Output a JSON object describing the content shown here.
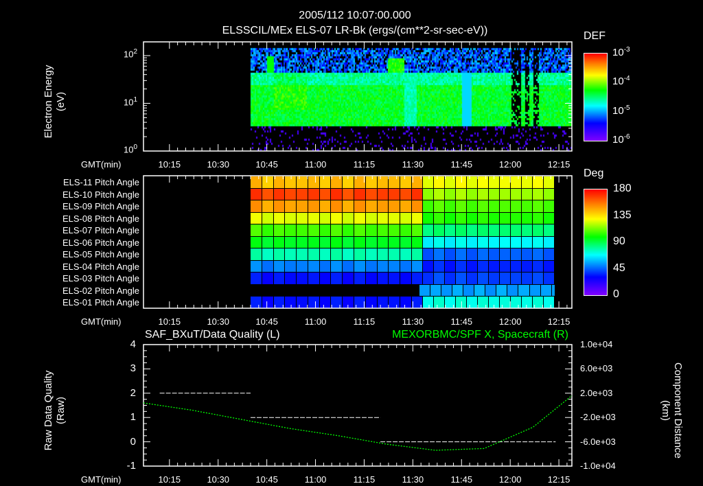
{
  "header": {
    "datetime": "2005/112 10:07:00.000"
  },
  "chart_data": [
    {
      "type": "heatmap",
      "title": "ELSSCIL/MEx ELS-07 LR-Bk  (ergs/(cm**2-sr-sec-eV))",
      "ylabel": "Electron Energy",
      "yunit": "(eV)",
      "yscale": "log",
      "ylim": [
        1,
        195
      ],
      "yticks": [
        {
          "base": "10",
          "exp": "0"
        },
        {
          "base": "10",
          "exp": "1"
        },
        {
          "base": "10",
          "exp": "2"
        }
      ],
      "xlabel": "GMT(min)",
      "xlim": [
        "10:07",
        "12:19"
      ],
      "xticks": [
        "10:15",
        "10:30",
        "10:45",
        "11:00",
        "11:15",
        "11:30",
        "11:45",
        "12:00",
        "12:15"
      ],
      "colorbar": {
        "label": "DEF",
        "ticks": [
          {
            "base": "10",
            "exp": "-3"
          },
          {
            "base": "10",
            "exp": "-4"
          },
          {
            "base": "10",
            "exp": "-5"
          },
          {
            "base": "10",
            "exp": "-6"
          }
        ],
        "range": [
          1e-06,
          0.001
        ],
        "scale": "log"
      },
      "data_start": "10:40",
      "band_eV": [
        3.5,
        150
      ],
      "peak_band_eV": [
        4,
        40
      ]
    },
    {
      "type": "heatmap",
      "xlabel": "GMT(min)",
      "xticks": [
        "10:15",
        "10:30",
        "10:45",
        "11:00",
        "11:15",
        "11:30",
        "11:45",
        "12:00",
        "12:15"
      ],
      "rows": [
        "ELS-11 Pitch Angle",
        "ELS-10 Pitch Angle",
        "ELS-09 Pitch Angle",
        "ELS-08 Pitch Angle",
        "ELS-07 Pitch Angle",
        "ELS-06 Pitch Angle",
        "ELS-05 Pitch Angle",
        "ELS-04 Pitch Angle",
        "ELS-03 Pitch Angle",
        "ELS-02 Pitch Angle",
        "ELS-01 Pitch Angle"
      ],
      "before_11_33": [
        150,
        170,
        155,
        135,
        110,
        95,
        72,
        40,
        22,
        null,
        22
      ],
      "after_11_34": [
        138,
        125,
        112,
        105,
        82,
        60,
        35,
        25,
        30,
        45,
        65
      ],
      "colorbar": {
        "label": "Deg",
        "ticks": [
          "180",
          "135",
          "90",
          "45",
          "0"
        ],
        "range": [
          0,
          180
        ]
      }
    },
    {
      "type": "line",
      "title_left": "SAF_BXuT/Data Quality (L)",
      "title_right": "MEXORBMC/SPF X, Spacecraft (R)",
      "ylabel_left": "Raw Data Quality",
      "yunit_left": "(Raw)",
      "ylabel_right": "Component Distance",
      "yunit_right": "(km)",
      "ylim_left": [
        -1,
        4
      ],
      "yticks_left": [
        "4",
        "3",
        "2",
        "1",
        "0",
        "-1"
      ],
      "ylim_right": [
        -10000,
        10000
      ],
      "yticks_right": [
        "1.0e+04",
        "6.0e+03",
        "2.0e+03",
        "-2.0e+03",
        "-6.0e+03",
        "-1.0e+04"
      ],
      "xlabel": "GMT(min)",
      "xticks": [
        "10:15",
        "10:30",
        "10:45",
        "11:00",
        "11:15",
        "11:30",
        "11:45",
        "12:00",
        "12:15"
      ],
      "series": [
        {
          "name": "Data Quality",
          "color": "#ffffff",
          "segments": [
            {
              "from": "10:12",
              "to": "10:40",
              "value": 2
            },
            {
              "from": "10:40",
              "to": "11:20",
              "value": 1
            },
            {
              "from": "11:20",
              "to": "12:14",
              "value": 0
            }
          ]
        },
        {
          "name": "SPF X",
          "color": "#00ff00",
          "x_min": [
            0,
            15,
            30,
            45,
            60,
            75,
            90,
            105,
            120,
            132
          ],
          "y_km": [
            400,
            -800,
            -2300,
            -3800,
            -5000,
            -6400,
            -7400,
            -7100,
            -3600,
            1600
          ]
        }
      ]
    }
  ]
}
